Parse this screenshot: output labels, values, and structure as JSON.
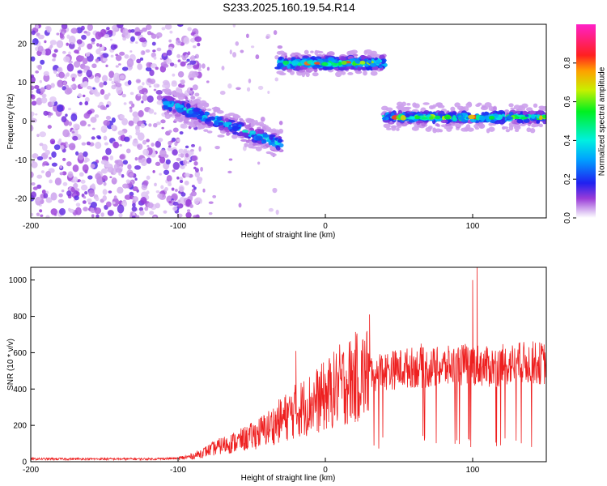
{
  "title": "S233.2025.160.19.54.R14",
  "colors": {
    "snr_line": "#ee2020",
    "scatter": "#7a28d8",
    "background": "#ffffff",
    "axes": "#000000"
  },
  "chart_data": [
    {
      "type": "heatmap",
      "xlabel": "Height of straight line (km)",
      "ylabel": "Frequency (Hz)",
      "xlim": [
        -200,
        150
      ],
      "ylim": [
        -25,
        25
      ],
      "x_ticks": [
        -200,
        -100,
        0,
        100
      ],
      "y_ticks": [
        -20,
        -10,
        0,
        10,
        20
      ],
      "colorbar": {
        "label": "Normalized spectral amplitude",
        "range": [
          0.0,
          1.0
        ],
        "ticks": [
          0.0,
          0.2,
          0.4,
          0.6,
          0.8
        ],
        "tick_labels": [
          "0.0",
          "0.2",
          "0.4",
          "0.6",
          "0.8"
        ],
        "colormap": "rainbow (white-violet-blue-cyan-green-yellow-red-magenta)"
      },
      "features": [
        {
          "x_range": [
            -200,
            -100
          ],
          "frequency_range": [
            -25,
            25
          ],
          "amplitude": 0.1,
          "pattern": "diffuse scattered noise"
        },
        {
          "x_range": [
            -110,
            -30
          ],
          "frequency_start": 5,
          "frequency_end": -6,
          "amplitude": 0.4,
          "pattern": "descending band"
        },
        {
          "x_range": [
            -32,
            40
          ],
          "frequency_center": 15,
          "amplitude": 0.8,
          "pattern": "horizontal band"
        },
        {
          "x_range": [
            40,
            150
          ],
          "frequency_center": 1,
          "amplitude": 0.8,
          "pattern": "horizontal band"
        }
      ]
    },
    {
      "type": "line",
      "xlabel": "Height of straight line (km)",
      "ylabel": "SNR (10 * v/v)",
      "xlim": [
        -200,
        150
      ],
      "ylim": [
        0,
        1070
      ],
      "x_ticks": [
        -200,
        -100,
        0,
        100
      ],
      "y_ticks": [
        0,
        200,
        400,
        600,
        800,
        1000
      ],
      "series": [
        {
          "x": [
            -200,
            -180,
            -160,
            -140,
            -120,
            -100,
            -90,
            -80,
            -70,
            -60,
            -50,
            -40,
            -30,
            -20,
            -10,
            0,
            10,
            20,
            30,
            40,
            50,
            60,
            70,
            80,
            90,
            100,
            110,
            120,
            130,
            140,
            150
          ],
          "values": [
            15,
            15,
            15,
            15,
            15,
            18,
            30,
            60,
            90,
            110,
            140,
            180,
            230,
            280,
            320,
            360,
            420,
            460,
            490,
            500,
            510,
            520,
            515,
            520,
            530,
            540,
            520,
            530,
            540,
            545,
            540
          ]
        }
      ],
      "peaks": [
        {
          "x": -20,
          "value": 610
        },
        {
          "x": 30,
          "value": 810
        },
        {
          "x": 65,
          "value": 650
        },
        {
          "x": 100,
          "value": 1000
        },
        {
          "x": 103,
          "value": 1070
        }
      ]
    }
  ]
}
